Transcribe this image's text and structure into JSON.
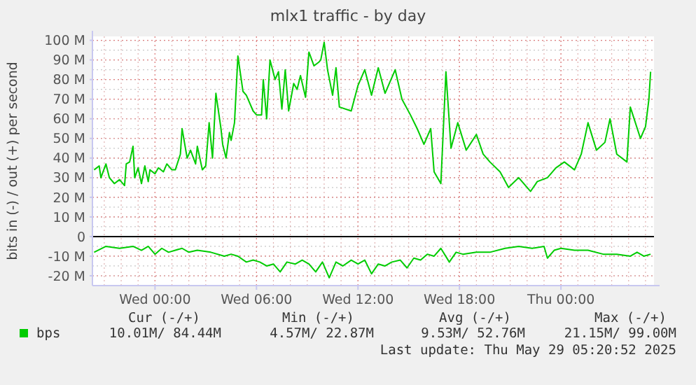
{
  "chart_data": {
    "type": "line",
    "title": "mlx1 traffic - by day",
    "ylabel": "bits in (-) / out (+) per second",
    "xlim": [
      "2025-05-27T20:18",
      "2025-05-29T05:30"
    ],
    "xticks": [
      {
        "value": "2025-05-28T00:00",
        "label": "Wed 00:00"
      },
      {
        "value": "2025-05-28T06:00",
        "label": "Wed 06:00"
      },
      {
        "value": "2025-05-28T12:00",
        "label": "Wed 12:00"
      },
      {
        "value": "2025-05-28T18:00",
        "label": "Wed 18:00"
      },
      {
        "value": "2025-05-29T00:00",
        "label": "Thu 00:00"
      }
    ],
    "ylim": [
      -25,
      102
    ],
    "yticks": [
      {
        "value": -20,
        "label": "-20 M"
      },
      {
        "value": -10,
        "label": "-10 M"
      },
      0,
      {
        "value": 10,
        "label": "10 M"
      },
      {
        "value": 20,
        "label": "20 M"
      },
      {
        "value": 30,
        "label": "30 M"
      },
      {
        "value": 40,
        "label": "40 M"
      },
      {
        "value": 50,
        "label": "50 M"
      },
      {
        "value": 60,
        "label": "60 M"
      },
      {
        "value": 70,
        "label": "70 M"
      },
      {
        "value": 80,
        "label": "80 M"
      },
      {
        "value": 90,
        "label": "90 M"
      },
      {
        "value": 100,
        "label": "100 M"
      }
    ],
    "grid": true,
    "legend": "bottom",
    "ref_lines": [
      {
        "axis": "y",
        "value": 0,
        "color": "#000000"
      }
    ],
    "series": [
      {
        "name": "bps",
        "color": "#00cc00",
        "x": [
          "2025-05-27T20:24",
          "2025-05-27T20:42",
          "2025-05-27T20:48",
          "2025-05-27T21:06",
          "2025-05-27T21:18",
          "2025-05-27T21:36",
          "2025-05-27T21:54",
          "2025-05-27T22:12",
          "2025-05-27T22:18",
          "2025-05-27T22:30",
          "2025-05-27T22:42",
          "2025-05-27T22:48",
          "2025-05-27T23:00",
          "2025-05-27T23:12",
          "2025-05-27T23:24",
          "2025-05-27T23:36",
          "2025-05-27T23:42",
          "2025-05-28T00:00",
          "2025-05-28T00:12",
          "2025-05-28T00:30",
          "2025-05-28T00:42",
          "2025-05-28T01:00",
          "2025-05-28T01:12",
          "2025-05-28T01:30",
          "2025-05-28T01:36",
          "2025-05-28T01:54",
          "2025-05-28T02:06",
          "2025-05-28T02:24",
          "2025-05-28T02:30",
          "2025-05-28T02:48",
          "2025-05-28T03:00",
          "2025-05-28T03:12",
          "2025-05-28T03:24",
          "2025-05-28T03:36",
          "2025-05-28T03:54",
          "2025-05-28T04:00",
          "2025-05-28T04:12",
          "2025-05-28T04:24",
          "2025-05-28T04:30",
          "2025-05-28T04:42",
          "2025-05-28T04:54",
          "2025-05-28T05:12",
          "2025-05-28T05:24",
          "2025-05-28T05:48",
          "2025-05-28T06:00",
          "2025-05-28T06:18",
          "2025-05-28T06:24",
          "2025-05-28T06:36",
          "2025-05-28T06:48",
          "2025-05-28T07:06",
          "2025-05-28T07:18",
          "2025-05-28T07:30",
          "2025-05-28T07:42",
          "2025-05-28T07:54",
          "2025-05-28T08:12",
          "2025-05-28T08:24",
          "2025-05-28T08:36",
          "2025-05-28T08:54",
          "2025-05-28T09:06",
          "2025-05-28T09:24",
          "2025-05-28T09:42",
          "2025-05-28T09:48",
          "2025-05-28T10:00",
          "2025-05-28T10:12",
          "2025-05-28T10:30",
          "2025-05-28T10:42",
          "2025-05-28T10:54",
          "2025-05-28T11:36",
          "2025-05-28T12:00",
          "2025-05-28T12:24",
          "2025-05-28T12:48",
          "2025-05-28T13:12",
          "2025-05-28T13:36",
          "2025-05-28T14:12",
          "2025-05-28T14:36",
          "2025-05-28T15:06",
          "2025-05-28T15:30",
          "2025-05-28T15:54",
          "2025-05-28T16:18",
          "2025-05-28T16:30",
          "2025-05-28T16:54",
          "2025-05-28T17:12",
          "2025-05-28T17:30",
          "2025-05-28T17:54",
          "2025-05-28T18:24",
          "2025-05-28T19:00",
          "2025-05-28T19:24",
          "2025-05-28T19:48",
          "2025-05-28T20:24",
          "2025-05-28T20:54",
          "2025-05-28T21:30",
          "2025-05-28T22:12",
          "2025-05-28T22:36",
          "2025-05-28T23:12",
          "2025-05-28T23:42",
          "2025-05-29T00:12",
          "2025-05-29T00:48",
          "2025-05-29T01:12",
          "2025-05-29T01:36",
          "2025-05-29T02:06",
          "2025-05-29T02:36",
          "2025-05-29T02:54",
          "2025-05-29T03:18",
          "2025-05-29T03:54",
          "2025-05-29T04:06",
          "2025-05-29T04:42",
          "2025-05-29T05:00",
          "2025-05-29T05:12",
          "2025-05-29T05:18"
        ],
        "values": [
          34,
          36,
          30,
          37,
          30,
          27,
          29,
          26,
          37,
          38,
          46,
          30,
          35,
          27,
          36,
          28,
          34,
          32,
          35,
          33,
          37,
          34,
          34,
          42,
          55,
          40,
          44,
          37,
          46,
          34,
          36,
          58,
          40,
          73,
          55,
          47,
          40,
          53,
          49,
          58,
          92,
          74,
          72,
          64,
          62,
          62,
          80,
          60,
          90,
          80,
          84,
          65,
          85,
          64,
          78,
          75,
          82,
          71,
          94,
          87,
          89,
          90,
          99,
          85,
          72,
          86,
          66,
          64,
          77,
          85,
          72,
          86,
          73,
          85,
          70,
          62,
          55,
          47,
          55,
          33,
          27,
          84,
          45,
          58,
          44,
          52,
          42,
          38,
          33,
          25,
          30,
          23,
          28,
          30,
          35,
          38,
          34,
          42,
          58,
          44,
          48,
          60,
          42,
          38,
          66,
          50,
          56,
          70,
          84
        ]
      },
      {
        "color": "#00cc00",
        "x": [
          "2025-05-27T20:24",
          "2025-05-27T21:06",
          "2025-05-27T21:54",
          "2025-05-27T22:42",
          "2025-05-27T23:12",
          "2025-05-27T23:36",
          "2025-05-28T00:00",
          "2025-05-28T00:24",
          "2025-05-28T00:48",
          "2025-05-28T01:12",
          "2025-05-28T01:36",
          "2025-05-28T02:00",
          "2025-05-28T02:30",
          "2025-05-28T03:18",
          "2025-05-28T04:06",
          "2025-05-28T04:30",
          "2025-05-28T04:54",
          "2025-05-28T05:24",
          "2025-05-28T05:48",
          "2025-05-28T06:12",
          "2025-05-28T06:36",
          "2025-05-28T07:00",
          "2025-05-28T07:24",
          "2025-05-28T07:48",
          "2025-05-28T08:18",
          "2025-05-28T08:42",
          "2025-05-28T09:06",
          "2025-05-28T09:30",
          "2025-05-28T09:54",
          "2025-05-28T10:18",
          "2025-05-28T10:42",
          "2025-05-28T11:06",
          "2025-05-28T11:36",
          "2025-05-28T12:00",
          "2025-05-28T12:24",
          "2025-05-28T12:48",
          "2025-05-28T13:12",
          "2025-05-28T13:36",
          "2025-05-28T14:00",
          "2025-05-28T14:30",
          "2025-05-28T14:54",
          "2025-05-28T15:18",
          "2025-05-28T15:42",
          "2025-05-28T16:06",
          "2025-05-28T16:30",
          "2025-05-28T16:54",
          "2025-05-28T17:24",
          "2025-05-28T17:48",
          "2025-05-28T18:12",
          "2025-05-28T19:00",
          "2025-05-28T19:48",
          "2025-05-28T20:42",
          "2025-05-28T21:30",
          "2025-05-28T22:18",
          "2025-05-28T23:00",
          "2025-05-28T23:12",
          "2025-05-28T23:36",
          "2025-05-29T00:00",
          "2025-05-29T00:48",
          "2025-05-29T01:36",
          "2025-05-29T02:30",
          "2025-05-29T03:18",
          "2025-05-29T04:06",
          "2025-05-29T04:30",
          "2025-05-29T04:54",
          "2025-05-29T05:18"
        ],
        "values": [
          -8,
          -5,
          -6,
          -5,
          -7,
          -5,
          -9,
          -6,
          -8,
          -7,
          -6,
          -8,
          -7,
          -8,
          -10,
          -9,
          -10,
          -13,
          -12,
          -13,
          -15,
          -14,
          -18,
          -13,
          -14,
          -12,
          -14,
          -18,
          -13,
          -21,
          -13,
          -15,
          -12,
          -14,
          -12,
          -19,
          -14,
          -15,
          -13,
          -12,
          -16,
          -11,
          -12,
          -9,
          -10,
          -6,
          -13,
          -8,
          -9,
          -8,
          -8,
          -6,
          -5,
          -6,
          -5,
          -11,
          -7,
          -6,
          -7,
          -7,
          -9,
          -9,
          -10,
          -8,
          -10,
          -9
        ]
      }
    ],
    "annotations": [
      "Cur (-/+)",
      "Min (-/+)",
      "Avg (-/+)",
      "Max (-/+)",
      "10.01M/ 84.44M",
      "4.57M/ 22.87M",
      "9.53M/ 52.76M",
      "21.15M/ 99.00M",
      "Last update: Thu May 29 05:20:52 2025"
    ]
  }
}
